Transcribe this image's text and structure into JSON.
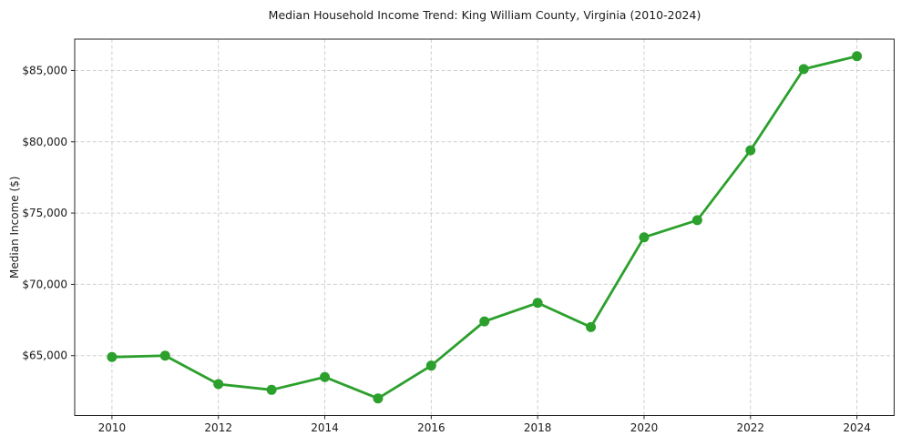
{
  "chart_data": {
    "type": "line",
    "title": "Median Household Income Trend: King William County, Virginia (2010-2024)",
    "xlabel": "",
    "ylabel": "Median Income ($)",
    "x": [
      2010,
      2011,
      2012,
      2013,
      2014,
      2015,
      2016,
      2017,
      2018,
      2019,
      2020,
      2021,
      2022,
      2023,
      2024
    ],
    "values": [
      64900,
      65000,
      63000,
      62600,
      63500,
      62000,
      64300,
      67400,
      68700,
      67000,
      73300,
      74500,
      79400,
      85100,
      86000
    ],
    "xlim": [
      2009.3,
      2024.7
    ],
    "ylim": [
      60800,
      87200
    ],
    "x_ticks": [
      2010,
      2012,
      2014,
      2016,
      2018,
      2020,
      2022,
      2024
    ],
    "x_tick_labels": [
      "2010",
      "2012",
      "2014",
      "2016",
      "2018",
      "2020",
      "2022",
      "2024"
    ],
    "y_ticks": [
      65000,
      70000,
      75000,
      80000,
      85000
    ],
    "y_tick_labels": [
      "$65,000",
      "$70,000",
      "$75,000",
      "$80,000",
      "$85,000"
    ],
    "grid": true,
    "legend": "none",
    "line_color": "#2ca02c",
    "marker": "o",
    "grid_color": "#cfcfcf",
    "spine_color": "#262626",
    "background_color": "#ffffff"
  }
}
